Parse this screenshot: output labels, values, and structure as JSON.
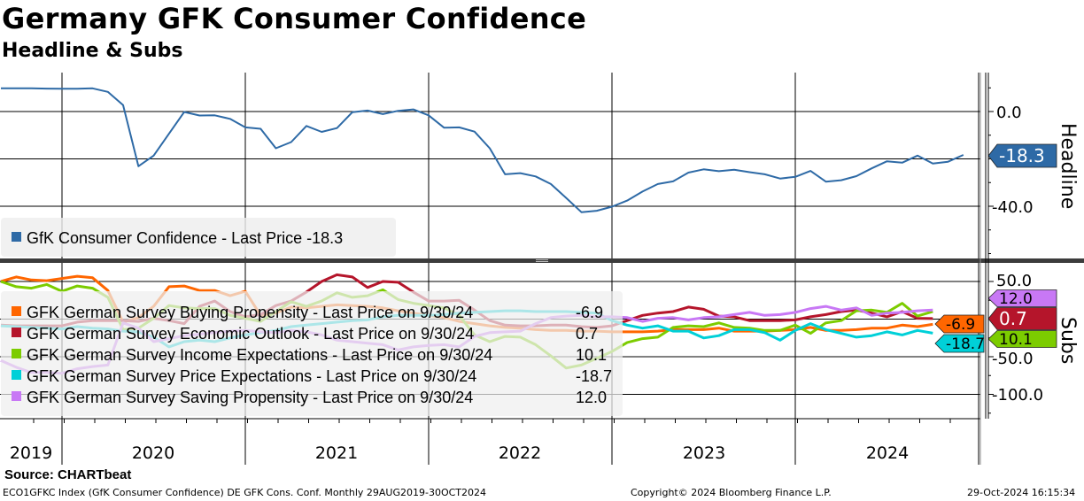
{
  "header": {
    "title": "Germany GFK Consumer Confidence",
    "subtitle": "Headline & Subs"
  },
  "footer": {
    "source": "Source: CHARTbeat",
    "ticker_info": "ECO1GFKC Index (GfK Consumer Confidence) DE GFK Cons. Conf.  Monthly 29AUG2019-30OCT2024",
    "copyright": "Copyright© 2024 Bloomberg Finance L.P.",
    "timestamp": "29-Oct-2024 16:15:34"
  },
  "chart_data": [
    {
      "type": "line",
      "panel": "Headline",
      "axis_title": "Headline",
      "start_month": "2019-08",
      "frequency": "monthly",
      "ylim": [
        -62,
        16
      ],
      "y_tick_labels": [
        "0.0",
        "-40.0"
      ],
      "y_ticks": [
        0,
        -40
      ],
      "gridlines": [
        0,
        -20,
        -40
      ],
      "legend_placement": "bottom-left",
      "series": [
        {
          "name": "GfK Consumer Confidence",
          "legend": "GfK Consumer Confidence - Last Price -18.3",
          "last_value": "-18.3",
          "color": "#2e6aa6",
          "values": [
            9.8,
            9.8,
            9.8,
            9.7,
            9.6,
            9.6,
            9.8,
            8.3,
            2.7,
            -23.1,
            -18.6,
            -9.4,
            -0.2,
            -1.7,
            -1.6,
            -3.1,
            -6.7,
            -7.3,
            -15.5,
            -12.9,
            -6.1,
            -8.6,
            -7.0,
            -0.3,
            0.4,
            -1.1,
            0.3,
            0.9,
            -1.6,
            -6.8,
            -6.7,
            -8.5,
            -15.5,
            -26.5,
            -26.0,
            -27.4,
            -30.6,
            -36.5,
            -42.5,
            -41.9,
            -40.2,
            -37.6,
            -33.8,
            -30.6,
            -29.5,
            -25.8,
            -24.4,
            -25.2,
            -24.6,
            -25.6,
            -26.5,
            -28.3,
            -27.6,
            -25.1,
            -29.6,
            -29.0,
            -27.3,
            -24.0,
            -21.0,
            -21.6,
            -18.6,
            -22.0,
            -21.2,
            -18.3
          ]
        }
      ]
    },
    {
      "type": "line",
      "panel": "Subs",
      "axis_title": "Subs",
      "start_month": "2019-08",
      "frequency": "monthly",
      "ylim": [
        -132,
        73
      ],
      "y_tick_labels": [
        "50.0",
        "-50.0",
        "-100.0"
      ],
      "y_ticks": [
        50,
        -50,
        -100
      ],
      "gridlines": [
        50,
        0,
        -50,
        -100
      ],
      "legend_placement": "center-left",
      "series": [
        {
          "name": "GFK German Survey Buying Propensity",
          "legend": "GFK German Survey Buying Propensity - Last Price on 9/30/24",
          "last_value": "-6.9",
          "color": "#ff6600",
          "values": [
            50,
            56,
            52,
            51,
            54,
            57,
            55,
            38,
            -4,
            2,
            17,
            43,
            44,
            38,
            38,
            31,
            37,
            5,
            8,
            16,
            15,
            17,
            19,
            18,
            17,
            15,
            11,
            8,
            5,
            2,
            -3,
            -6,
            -9,
            -11,
            -12,
            -14,
            -15,
            -15,
            -16,
            -16,
            -17,
            -17,
            -17,
            -16,
            -14,
            -14,
            -14,
            -12,
            -16,
            -16,
            -16,
            -15,
            -14,
            -11,
            -15,
            -15,
            -14,
            -12,
            -12,
            -8,
            -10,
            -6.9
          ]
        },
        {
          "name": "GFK German Survey Economic Outlook",
          "legend": "GFK German Survey Economic Outlook - Last Price on 9/30/24",
          "last_value": "0.7",
          "color": "#b5152b",
          "values": [
            -8,
            -9,
            -9,
            -9,
            -9,
            -4,
            -2,
            -2,
            -2,
            -3,
            1,
            -2,
            -6,
            17,
            24,
            10,
            3,
            6,
            18,
            24,
            36,
            50,
            59,
            56,
            42,
            50,
            49,
            36,
            24,
            24,
            25,
            12,
            -2,
            -8,
            -9,
            -9,
            -8,
            -8,
            -10,
            -11,
            -9,
            -2,
            5,
            8,
            10,
            16,
            13,
            4,
            3,
            -2,
            -2,
            -2,
            -1,
            3,
            6,
            10,
            12,
            8,
            3,
            10,
            1,
            0.7
          ]
        },
        {
          "name": "GFK German Survey Income Expectations",
          "legend": "GFK German Survey Income Expectations - Last Price on 9/30/24",
          "last_value": "10.1",
          "color": "#7ccc00",
          "values": [
            50,
            43,
            41,
            46,
            37,
            44,
            41,
            29,
            -14,
            -12,
            1,
            18,
            15,
            14,
            14,
            5,
            1,
            -3,
            10,
            23,
            17,
            24,
            35,
            29,
            31,
            39,
            26,
            21,
            18,
            15,
            5,
            -21,
            -30,
            -23,
            -24,
            -34,
            -49,
            -65,
            -61,
            -52,
            -43,
            -31,
            -26,
            -24,
            -11,
            -9,
            -10,
            -5,
            -11,
            -12,
            -15,
            -15,
            -8,
            -19,
            -5,
            -2,
            11,
            12,
            9,
            21,
            4,
            10.1
          ]
        },
        {
          "name": "GFK German Survey Price Expectations",
          "legend": "GFK German Survey Price Expectations - Last Price on 9/30/24",
          "last_value": "-18.7",
          "color": "#00d0d8",
          "values": [
            -9,
            -10,
            -11,
            -12,
            -13,
            -10,
            -12,
            -13,
            -16,
            -17,
            -24,
            -37,
            -30,
            -28,
            -30,
            -25,
            -21,
            -18,
            -15,
            -10,
            -8,
            -6,
            -4,
            -2,
            -1,
            3,
            5,
            5,
            5,
            6,
            8,
            9,
            10,
            11,
            11,
            10,
            10,
            10,
            9,
            8,
            -2,
            -8,
            -12,
            -9,
            -16,
            -16,
            -25,
            -22,
            -14,
            -14,
            -18,
            -28,
            -15,
            -6,
            -14,
            -19,
            -24,
            -22,
            -17,
            -21,
            -15,
            -18.7
          ]
        },
        {
          "name": "GFK German Survey Saving Propensity",
          "legend": "GFK German Survey Saving Propensity - Last Price on 9/30/24",
          "last_value": "12.0",
          "color": "#c878f5",
          "values": [
            -55,
            -64,
            -71,
            -71,
            -72,
            -66,
            -63,
            -61,
            -5,
            -12,
            -30,
            -26,
            -22,
            -20,
            -18,
            -16,
            -15,
            -17,
            -18,
            -15,
            -17,
            -21,
            -28,
            -30,
            -32,
            -34,
            -41,
            -37,
            -35,
            -34,
            -37,
            -23,
            -18,
            -17,
            -16,
            -6,
            2,
            4,
            5,
            3,
            3,
            2,
            -3,
            1,
            2,
            -1,
            2,
            3,
            6,
            9,
            5,
            6,
            9,
            14,
            17,
            12,
            15,
            5,
            8,
            9,
            11,
            12.0
          ]
        }
      ]
    }
  ],
  "x_axis": {
    "year_labels": [
      "2019",
      "2020",
      "2021",
      "2022",
      "2023",
      "2024"
    ]
  }
}
